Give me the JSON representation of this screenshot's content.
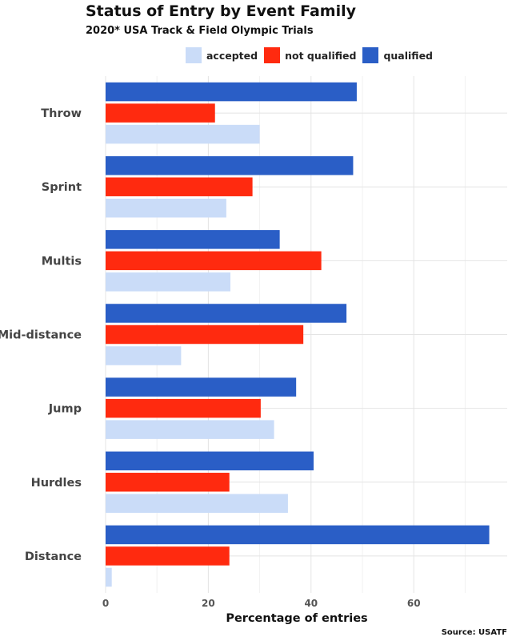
{
  "chart_data": {
    "type": "bar",
    "orientation": "horizontal",
    "title": "Status of Entry by Event Family",
    "subtitle": "2020* USA Track & Field Olympic Trials",
    "xlabel": "Percentage of entries",
    "ylabel": "",
    "caption": "Source: USATF",
    "xlim": [
      0,
      78
    ],
    "xticks": [
      0,
      20,
      40,
      60
    ],
    "grid": true,
    "legend_position": "top",
    "categories": [
      "Throw",
      "Sprint",
      "Multis",
      "Mid-distance",
      "Jump",
      "Hurdles",
      "Distance"
    ],
    "series": [
      {
        "name": "accepted",
        "color": "#cadcf8",
        "values": [
          30,
          23.5,
          24.3,
          14.7,
          32.8,
          35.5,
          1.2
        ]
      },
      {
        "name": "not qualified",
        "color": "#ff2a0f",
        "values": [
          21.3,
          28.6,
          42,
          38.5,
          30.2,
          24.1,
          24.1
        ]
      },
      {
        "name": "qualified",
        "color": "#2a5ec6",
        "values": [
          48.9,
          48.2,
          33.9,
          46.9,
          37.1,
          40.5,
          74.7
        ]
      }
    ]
  }
}
